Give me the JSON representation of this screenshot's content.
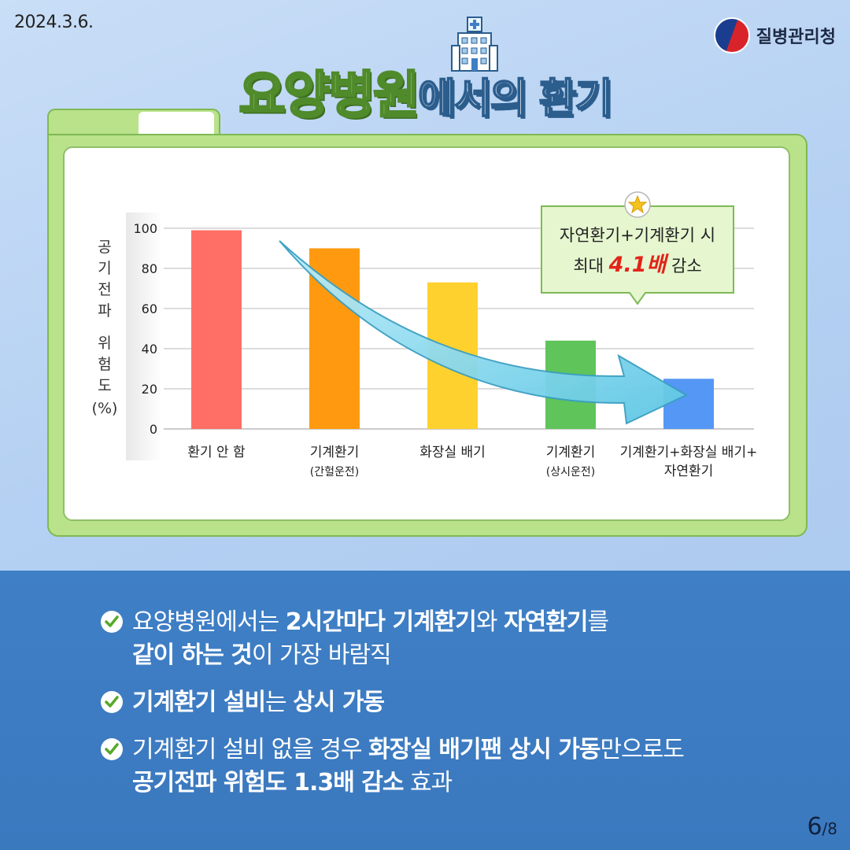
{
  "date": "2024.3.6.",
  "agency": "질병관리청",
  "title": {
    "highlight": "요양병원",
    "rest": "에서의 환기"
  },
  "chart_data": {
    "type": "bar",
    "ylabel": "공기전파 위험도 (%)",
    "ylim": [
      0,
      100
    ],
    "yticks": [
      0,
      20,
      40,
      60,
      80,
      100
    ],
    "categories": [
      {
        "label": "환기 안 함",
        "sub": ""
      },
      {
        "label": "기계환기",
        "sub": "(간헐운전)"
      },
      {
        "label": "화장실 배기",
        "sub": ""
      },
      {
        "label": "기계환기",
        "sub": "(상시운전)"
      },
      {
        "label": "기계환기+화장실 배기+",
        "sub": "자연환기"
      }
    ],
    "values": [
      99,
      90,
      73,
      44,
      25
    ],
    "colors": [
      "#ff6f66",
      "#ff9a10",
      "#ffd12e",
      "#5fc45a",
      "#5597f5"
    ],
    "callout": {
      "line1": "자연환기+기계환기 시",
      "line2_pre": "최대 ",
      "line2_emph": "4.1배",
      "line2_post": " 감소"
    }
  },
  "bullets": [
    {
      "line1": [
        {
          "t": "요양병원에서는 ",
          "b": false
        },
        {
          "t": "2시간마다 기계환기",
          "b": true
        },
        {
          "t": "와 ",
          "b": false
        },
        {
          "t": "자연환기",
          "b": true
        },
        {
          "t": "를",
          "b": false
        }
      ],
      "line2": [
        {
          "t": "같이 하는 것",
          "b": true
        },
        {
          "t": "이 가장 바람직",
          "b": false
        }
      ]
    },
    {
      "line1": [
        {
          "t": "기계환기 설비",
          "b": true
        },
        {
          "t": "는 ",
          "b": false
        },
        {
          "t": "상시 가동",
          "b": true
        }
      ],
      "line2": []
    },
    {
      "line1": [
        {
          "t": "기계환기 설비 없을 경우 ",
          "b": false
        },
        {
          "t": "화장실 배기팬 상시 가동",
          "b": true
        },
        {
          "t": "만으로도",
          "b": false
        }
      ],
      "line2": [
        {
          "t": "공기전파 위험도 1.3배 감소",
          "b": true
        },
        {
          "t": " 효과",
          "b": false
        }
      ]
    }
  ],
  "page": {
    "current": "6",
    "total": "/8"
  }
}
